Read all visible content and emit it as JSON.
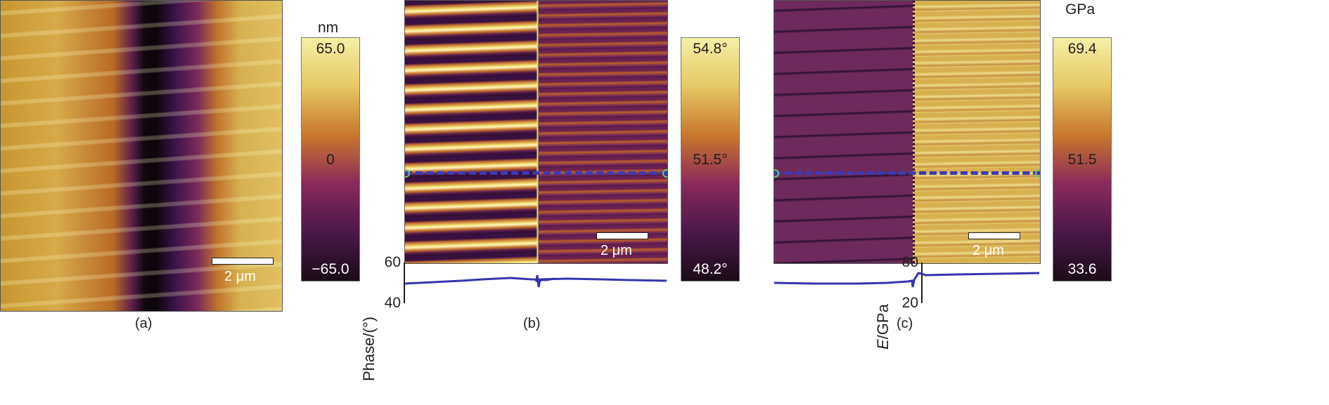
{
  "panels": [
    {
      "label": "(a)",
      "colorbar": {
        "unit": "nm",
        "max": "65.0",
        "mid": "0",
        "min": "−65.0"
      },
      "scale_bar": "2 μm"
    },
    {
      "label": "(b)",
      "colorbar": {
        "unit": "",
        "max": "54.8°",
        "mid": "51.5°",
        "min": "48.2°"
      },
      "scale_bar": "2 μm",
      "profile": {
        "ylabel": "Phase/(°)",
        "ymax": "60",
        "ymin": "40",
        "line_color": "#3535b0"
      }
    },
    {
      "label": "(c)",
      "colorbar": {
        "unit": "GPa",
        "max": "69.4",
        "mid": "51.5",
        "min": "33.6"
      },
      "scale_bar": "2 μm",
      "profile": {
        "ylabel_italic": "E",
        "ylabel": "/GPa",
        "ymax": "80",
        "ymin": "20",
        "line_color": "#3535b0"
      }
    }
  ]
}
